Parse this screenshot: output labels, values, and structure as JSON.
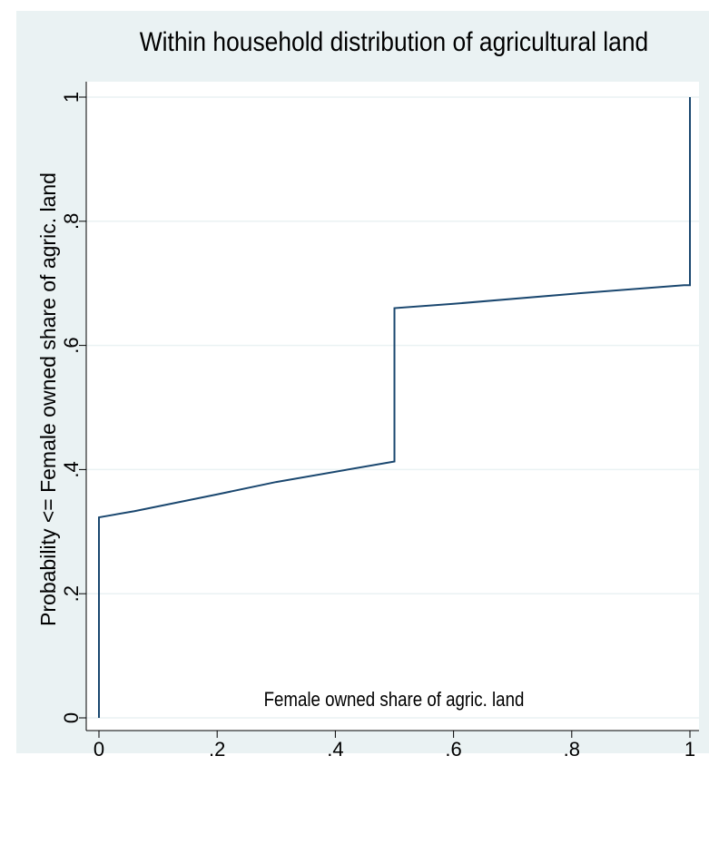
{
  "chart_data": {
    "type": "line",
    "title": "Within household distribution of agricultural land",
    "x_label": "Female owned share of agric. land",
    "y_label": "Probability <= Female owned share of agric. land",
    "x": [
      0,
      0,
      0.06,
      0.2,
      0.3,
      0.5,
      0.5,
      0.6,
      0.8,
      0.99,
      1,
      1
    ],
    "series": [
      {
        "color": "#1a476f",
        "values": [
          0,
          0.323,
          0.333,
          0.36,
          0.38,
          0.413,
          0.66,
          0.667,
          0.683,
          0.697,
          0.697,
          1
        ]
      }
    ],
    "xlim": [
      0,
      1
    ],
    "ylim": [
      0,
      1
    ],
    "xticks": [
      0,
      {
        "value": 0.2,
        "label": ".2"
      },
      {
        "value": 0.4,
        "label": ".4"
      },
      {
        "value": 0.6,
        "label": ".6"
      },
      {
        "value": 0.8,
        "label": ".8"
      },
      1
    ],
    "yticks": [
      0,
      {
        "value": 0.2,
        "label": ".2"
      },
      {
        "value": 0.4,
        "label": ".4"
      },
      {
        "value": 0.6,
        "label": ".6"
      },
      {
        "value": 0.8,
        "label": ".8"
      },
      1
    ],
    "grid": true
  }
}
